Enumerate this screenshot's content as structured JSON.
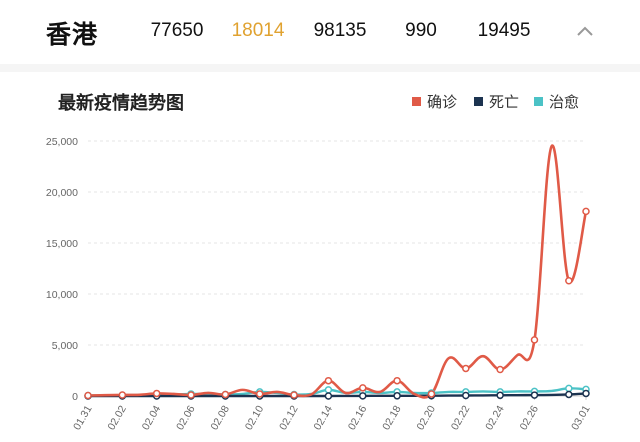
{
  "region": {
    "name": "香港",
    "stats": [
      "77650",
      "18014",
      "98135",
      "990",
      "19495"
    ]
  },
  "chart": {
    "title": "最新疫情趋势图",
    "legend": [
      {
        "label": "确诊",
        "color": "#e05a47"
      },
      {
        "label": "死亡",
        "color": "#1c3350"
      },
      {
        "label": "治愈",
        "color": "#4bc2c6"
      }
    ]
  },
  "chart_data": {
    "type": "line",
    "title": "最新疫情趋势图",
    "xlabel": "",
    "ylabel": "",
    "ylim": [
      0,
      25000
    ],
    "yticks": [
      "0",
      "5,000",
      "10,000",
      "15,000",
      "20,000",
      "25,000"
    ],
    "x_ticks": [
      "01.31",
      "02.02",
      "02.04",
      "02.06",
      "02.08",
      "02.10",
      "02.12",
      "02.14",
      "02.16",
      "02.18",
      "02.20",
      "02.22",
      "02.24",
      "02.26",
      "03.01"
    ],
    "x": [
      "01.31",
      "02.01",
      "02.02",
      "02.03",
      "02.04",
      "02.05",
      "02.06",
      "02.07",
      "02.08",
      "02.09",
      "02.10",
      "02.11",
      "02.12",
      "02.13",
      "02.14",
      "02.15",
      "02.16",
      "02.17",
      "02.18",
      "02.19",
      "02.20",
      "02.21",
      "02.22",
      "02.23",
      "02.24",
      "02.25",
      "02.26",
      "02.27",
      "02.28",
      "03.01"
    ],
    "series": [
      {
        "name": "确诊",
        "color": "#e05a47",
        "values": [
          50,
          80,
          100,
          120,
          250,
          200,
          100,
          300,
          150,
          600,
          200,
          400,
          100,
          150,
          1500,
          300,
          800,
          400,
          1500,
          200,
          200,
          3700,
          2700,
          3900,
          2600,
          4000,
          5500,
          24500,
          11300,
          18100
        ]
      },
      {
        "name": "死亡",
        "color": "#1c3350",
        "values": [
          0,
          0,
          0,
          0,
          0,
          0,
          0,
          0,
          0,
          0,
          0,
          0,
          0,
          0,
          0,
          10,
          10,
          20,
          20,
          20,
          30,
          40,
          50,
          60,
          70,
          80,
          90,
          100,
          150,
          250
        ]
      },
      {
        "name": "治愈",
        "color": "#4bc2c6",
        "values": [
          50,
          60,
          80,
          100,
          150,
          150,
          200,
          200,
          150,
          200,
          400,
          300,
          150,
          200,
          600,
          300,
          400,
          300,
          400,
          300,
          300,
          400,
          400,
          450,
          400,
          450,
          450,
          500,
          750,
          650
        ]
      }
    ],
    "grid": true,
    "legend_position": "top-right"
  }
}
